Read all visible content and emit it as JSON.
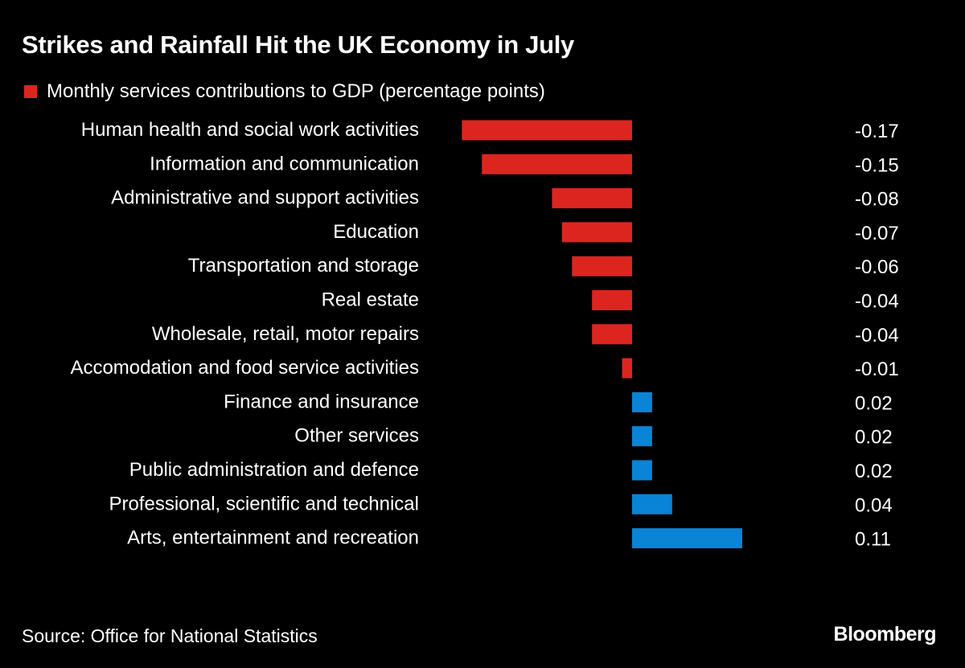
{
  "chart_data": {
    "type": "bar",
    "orientation": "horizontal",
    "title": "Strikes and Rainfall Hit the UK Economy in July",
    "legend": [
      {
        "name": "Monthly services contributions to GDP (percentage points)",
        "color": "#dd2520"
      }
    ],
    "legend_placement": "top-left",
    "categories": [
      "Human health and social work activities",
      "Information and communication",
      "Administrative and support activities",
      "Education",
      "Transportation and storage",
      "Real estate",
      "Wholesale, retail, motor repairs",
      "Accomodation and food service activities",
      "Finance and insurance",
      "Other services",
      "Public administration and defence",
      "Professional, scientific and technical",
      "Arts, entertainment and recreation"
    ],
    "values": [
      -0.17,
      -0.15,
      -0.08,
      -0.07,
      -0.06,
      -0.04,
      -0.04,
      -0.01,
      0.02,
      0.02,
      0.02,
      0.04,
      0.11
    ],
    "value_labels": [
      "-0.17",
      "-0.15",
      "-0.08",
      "-0.07",
      "-0.06",
      "-0.04",
      "-0.04",
      "-0.01",
      "0.02",
      "0.02",
      "0.02",
      "0.04",
      "0.11"
    ],
    "colors": {
      "negative": "#dd2520",
      "positive": "#0a84d6",
      "background": "#000000"
    },
    "grid": false
  },
  "footer": {
    "source": "Source: Office for National Statistics",
    "logo": "Bloomberg"
  }
}
